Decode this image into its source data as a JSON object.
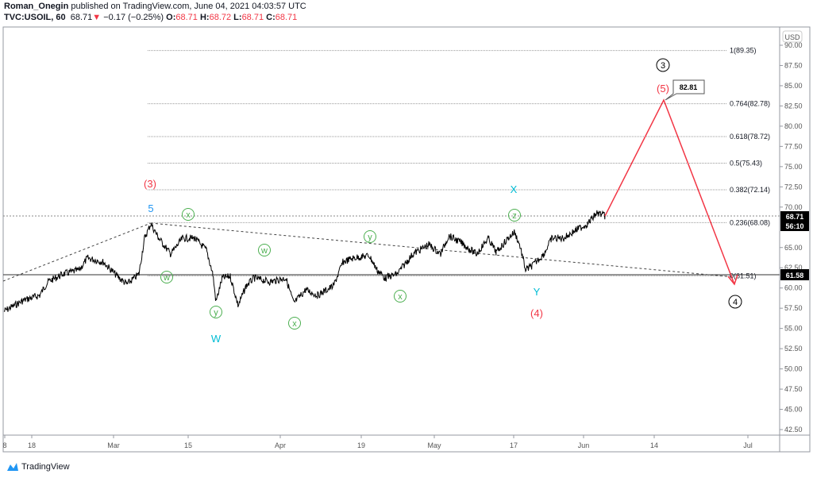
{
  "header": {
    "author": "Roman_Onegin",
    "published": "published on TradingView.com, June 04, 2021 04:03:57 UTC",
    "symbol": "TVC:USOIL, 60",
    "last": "68.71",
    "change": "−0.17 (−0.25%)",
    "o_label": "O:",
    "o": "68.71",
    "h_label": "H:",
    "h": "68.72",
    "l_label": "L:",
    "l": "68.71",
    "c_label": "C:",
    "c": "68.71"
  },
  "price_axis": {
    "currency": "USD",
    "ticks": [
      "90.00",
      "87.50",
      "85.00",
      "82.50",
      "80.00",
      "77.50",
      "75.00",
      "72.50",
      "70.00",
      "65.00",
      "62.50",
      "60.00",
      "57.50",
      "55.00",
      "52.50",
      "50.00",
      "47.50",
      "45.00",
      "42.50"
    ],
    "last_price": "68.71",
    "countdown": "56:10",
    "hline_price": "61.58"
  },
  "time_axis": {
    "ticks": [
      "8",
      "18",
      "Mar",
      "15",
      "Apr",
      "19",
      "May",
      "17",
      "Jun",
      "14",
      "Jul"
    ]
  },
  "fib_levels": [
    {
      "label": "1(89.35)",
      "price": 89.35
    },
    {
      "label": "0.764(82.78)",
      "price": 82.78
    },
    {
      "label": "0.618(78.72)",
      "price": 78.72
    },
    {
      "label": "0.5(75.43)",
      "price": 75.43
    },
    {
      "label": "0.382(72.14)",
      "price": 72.14
    },
    {
      "label": "0.236(68.08)",
      "price": 68.08
    },
    {
      "label": "0(61.51)",
      "price": 61.51
    }
  ],
  "target_callout": "82.81",
  "wave_labels": {
    "w3_red": "(3)",
    "w5_blue": "5",
    "W": "W",
    "X": "X",
    "Y": "Y",
    "w4_red": "(4)",
    "w5_red": "(5)",
    "circ3": "3",
    "circ4": "4",
    "w1": "w",
    "y1": "y",
    "x1": "x",
    "w2": "w",
    "x2": "x",
    "y2": "y",
    "x3": "x",
    "z": "z"
  },
  "colors": {
    "red": "#f23645",
    "blue": "#2196f3",
    "teal": "#00bcd4",
    "green": "#4caf50"
  },
  "footer": {
    "brand": "TradingView"
  }
}
